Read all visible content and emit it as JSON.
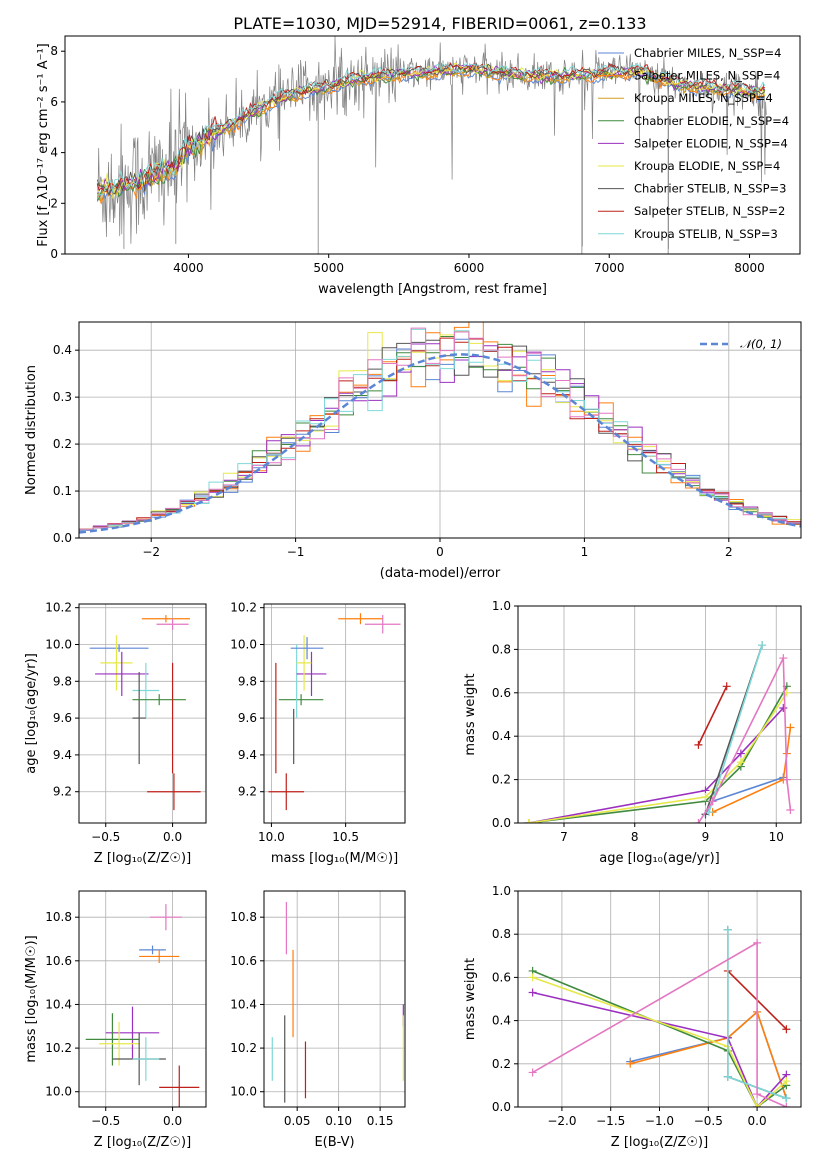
{
  "figure": {
    "title": "PLATE=1030, MJD=52914, FIBERID=0061, z=0.133"
  },
  "colors": {
    "chabrier_miles": "#5b86d6",
    "salpeter_miles": "#ff7f0e",
    "kroupa_miles": "#d4a020",
    "chabrier_elodie": "#3f8a3f",
    "salpeter_elodie": "#9b30c0",
    "kroupa_elodie": "#e6e84a",
    "chabrier_stelib": "#555555",
    "salpeter_stelib": "#c0201a",
    "kroupa_stelib": "#7fd8d8",
    "pink": "#e377c2",
    "data": "#808080",
    "normal": "#5b86d6"
  },
  "chart_data": [
    {
      "id": "spectrum",
      "type": "line",
      "title": "PLATE=1030, MJD=52914, FIBERID=0061, z=0.133",
      "xlabel": "wavelength [Angstrom, rest frame]",
      "ylabel": "Flux [f_λ10⁻¹⁷ erg cm⁻² s⁻¹ A⁻¹]",
      "xlim": [
        3120,
        8360
      ],
      "ylim": [
        0,
        8.6
      ],
      "xticks": [
        4000,
        5000,
        6000,
        7000,
        8000
      ],
      "yticks": [
        0,
        2,
        4,
        6,
        8
      ],
      "legend_position": "right",
      "series": [
        {
          "key": "chabrier_miles",
          "label": "Chabrier MILES, N_SSP=4"
        },
        {
          "key": "salpeter_miles",
          "label": "Salpeter MILES, N_SSP=4"
        },
        {
          "key": "kroupa_miles",
          "label": "Kroupa MILES, N_SSP=4"
        },
        {
          "key": "chabrier_elodie",
          "label": "Chabrier ELODIE, N_SSP=4"
        },
        {
          "key": "salpeter_elodie",
          "label": "Salpeter ELODIE, N_SSP=4"
        },
        {
          "key": "kroupa_elodie",
          "label": "Kroupa ELODIE, N_SSP=4"
        },
        {
          "key": "chabrier_stelib",
          "label": "Chabrier STELIB, N_SSP=3"
        },
        {
          "key": "salpeter_stelib",
          "label": "Salpeter STELIB, N_SSP=2"
        },
        {
          "key": "kroupa_stelib",
          "label": "Kroupa STELIB, N_SSP=3"
        }
      ],
      "continuum_x": [
        3350,
        3600,
        3900,
        4000,
        4200,
        4400,
        4600,
        4800,
        5000,
        5200,
        5500,
        5800,
        6000,
        6300,
        6600,
        6900,
        7200,
        7500,
        7800,
        8100
      ],
      "continuum_y": [
        2.5,
        2.8,
        3.4,
        4.2,
        4.8,
        5.4,
        6.0,
        6.4,
        6.6,
        6.9,
        7.1,
        7.2,
        7.3,
        7.1,
        7.0,
        7.1,
        7.2,
        6.7,
        6.5,
        6.4
      ]
    },
    {
      "id": "residuals",
      "type": "histogram",
      "xlabel": "(data-model)/error",
      "ylabel": "Normed distribution",
      "xlim": [
        -2.5,
        2.5
      ],
      "ylim": [
        0,
        0.46
      ],
      "xticks": [
        -2,
        -1,
        0,
        1,
        2
      ],
      "yticks": [
        0.0,
        0.1,
        0.2,
        0.3,
        0.4
      ],
      "legend_label": "𝒩(0, 1)",
      "legend_position": "top-right",
      "bin_width": 0.1,
      "series_keys": [
        "chabrier_miles",
        "salpeter_miles",
        "chabrier_elodie",
        "salpeter_elodie",
        "kroupa_elodie",
        "chabrier_stelib",
        "salpeter_stelib",
        "kroupa_stelib",
        "pink"
      ]
    },
    {
      "id": "age_vs_Z",
      "type": "errorbar",
      "xlabel": "Z [log₁₀(Z/Z☉)]",
      "ylabel": "age  [log₁₀(age/yr)]",
      "xlim": [
        -0.7,
        0.25
      ],
      "ylim": [
        9.03,
        10.22
      ],
      "xticks": [
        -0.5,
        0.0
      ],
      "xtick_labels": [
        "−0.5",
        "0.0"
      ],
      "yticks": [
        9.2,
        9.4,
        9.6,
        9.8,
        10.0,
        10.2
      ],
      "points": [
        {
          "c": "chabrier_miles",
          "x": -0.4,
          "xe": 0.22,
          "y": 9.98,
          "ye": 0.02
        },
        {
          "c": "kroupa_elodie",
          "x": -0.42,
          "xe": 0.12,
          "y": 9.9,
          "ye": 0.15
        },
        {
          "c": "salpeter_elodie",
          "x": -0.38,
          "xe": 0.2,
          "y": 9.84,
          "ye": 0.12
        },
        {
          "c": "kroupa_stelib",
          "x": -0.2,
          "xe": 0.1,
          "y": 9.75,
          "ye": 0.15
        },
        {
          "c": "chabrier_stelib",
          "x": -0.25,
          "xe": 0.05,
          "y": 9.6,
          "ye": 0.25
        },
        {
          "c": "chabrier_elodie",
          "x": -0.1,
          "xe": 0.2,
          "y": 9.7,
          "ye": 0.03
        },
        {
          "c": "salpeter_miles",
          "x": -0.05,
          "xe": 0.18,
          "y": 10.14,
          "ye": 0.02
        },
        {
          "c": "pink",
          "x": 0.0,
          "xe": 0.12,
          "y": 10.11,
          "ye": 0.03
        },
        {
          "c": "salpeter_stelib",
          "x": 0.01,
          "xe": 0.2,
          "y": 9.2,
          "ye": 0.1
        },
        {
          "c": "salpeter_stelib",
          "x": 0.0,
          "xe": 0.0,
          "y": 9.6,
          "ye": 0.3
        }
      ]
    },
    {
      "id": "age_vs_mass",
      "type": "errorbar",
      "xlabel": "mass [log₁₀(M/M☉)]",
      "ylabel": "",
      "xlim": [
        9.95,
        10.9
      ],
      "ylim": [
        9.03,
        10.22
      ],
      "xticks": [
        10.0,
        10.5
      ],
      "xtick_labels": [
        "10.0",
        "10.5"
      ],
      "yticks": [
        9.2,
        9.4,
        9.6,
        9.8,
        10.0,
        10.2
      ],
      "points": [
        {
          "c": "salpeter_stelib",
          "x": 10.1,
          "xe": 0.12,
          "y": 9.2,
          "ye": 0.1
        },
        {
          "c": "salpeter_stelib",
          "x": 10.03,
          "xe": 0.0,
          "y": 9.6,
          "ye": 0.3
        },
        {
          "c": "chabrier_elodie",
          "x": 10.2,
          "xe": 0.15,
          "y": 9.7,
          "ye": 0.03
        },
        {
          "c": "chabrier_stelib",
          "x": 10.15,
          "xe": 0.0,
          "y": 9.5,
          "ye": 0.15
        },
        {
          "c": "kroupa_stelib",
          "x": 10.17,
          "xe": 0.0,
          "y": 9.8,
          "ye": 0.2
        },
        {
          "c": "salpeter_elodie",
          "x": 10.27,
          "xe": 0.1,
          "y": 9.84,
          "ye": 0.12
        },
        {
          "c": "kroupa_elodie",
          "x": 10.22,
          "xe": 0.05,
          "y": 9.9,
          "ye": 0.15
        },
        {
          "c": "chabrier_miles",
          "x": 10.24,
          "xe": 0.11,
          "y": 9.98,
          "ye": 0.06
        },
        {
          "c": "salpeter_miles",
          "x": 10.6,
          "xe": 0.15,
          "y": 10.14,
          "ye": 0.03
        },
        {
          "c": "pink",
          "x": 10.75,
          "xe": 0.12,
          "y": 10.11,
          "ye": 0.05
        }
      ]
    },
    {
      "id": "massweight_vs_age",
      "type": "line",
      "xlabel": "age  [log₁₀(age/yr)]",
      "ylabel": "mass weight",
      "xlim": [
        6.35,
        10.35
      ],
      "ylim": [
        0,
        1.0
      ],
      "xticks": [
        7,
        8,
        9,
        10
      ],
      "yticks": [
        0.0,
        0.2,
        0.4,
        0.6,
        0.8,
        1.0
      ],
      "series": [
        {
          "c": "chabrier_miles",
          "x": [
            9.0,
            9.1,
            10.1
          ],
          "y": [
            0.04,
            0.1,
            0.21
          ]
        },
        {
          "c": "salpeter_miles",
          "x": [
            9.1,
            10.1,
            10.15,
            10.2
          ],
          "y": [
            0.05,
            0.2,
            0.32,
            0.44
          ]
        },
        {
          "c": "chabrier_elodie",
          "x": [
            6.5,
            9.0,
            9.5,
            10.15
          ],
          "y": [
            0.0,
            0.1,
            0.26,
            0.63
          ]
        },
        {
          "c": "salpeter_elodie",
          "x": [
            6.5,
            9.0,
            9.5,
            10.1
          ],
          "y": [
            0.0,
            0.15,
            0.32,
            0.53
          ]
        },
        {
          "c": "kroupa_elodie",
          "x": [
            6.5,
            9.0,
            9.5,
            10.15
          ],
          "y": [
            0.0,
            0.12,
            0.28,
            0.6
          ]
        },
        {
          "c": "chabrier_stelib",
          "x": [
            9.0,
            9.8
          ],
          "y": [
            0.04,
            0.82
          ]
        },
        {
          "c": "salpeter_stelib",
          "x": [
            8.9,
            9.3
          ],
          "y": [
            0.36,
            0.63
          ]
        },
        {
          "c": "kroupa_stelib",
          "x": [
            9.05,
            9.8
          ],
          "y": [
            0.05,
            0.82
          ]
        },
        {
          "c": "pink",
          "x": [
            8.9,
            9.1,
            10.1,
            10.15,
            10.2
          ],
          "y": [
            0.0,
            0.1,
            0.76,
            0.2,
            0.06
          ]
        }
      ]
    },
    {
      "id": "mass_vs_Z",
      "type": "errorbar",
      "xlabel": "Z [log₁₀(Z/Z☉)]",
      "ylabel": "mass [log₁₀(M/M☉)]",
      "xlim": [
        -0.7,
        0.25
      ],
      "ylim": [
        9.93,
        10.92
      ],
      "xticks": [
        -0.5,
        0.0
      ],
      "xtick_labels": [
        "−0.5",
        "0.0"
      ],
      "yticks": [
        10.0,
        10.2,
        10.4,
        10.6,
        10.8
      ],
      "points": [
        {
          "c": "pink",
          "x": -0.05,
          "xe": 0.12,
          "y": 10.8,
          "ye": 0.06
        },
        {
          "c": "chabrier_miles",
          "x": -0.15,
          "xe": 0.1,
          "y": 10.65,
          "ye": 0.02
        },
        {
          "c": "salpeter_miles",
          "x": -0.1,
          "xe": 0.15,
          "y": 10.62,
          "ye": 0.03
        },
        {
          "c": "salpeter_elodie",
          "x": -0.3,
          "xe": 0.2,
          "y": 10.27,
          "ye": 0.12
        },
        {
          "c": "chabrier_elodie",
          "x": -0.45,
          "xe": 0.2,
          "y": 10.24,
          "ye": 0.12
        },
        {
          "c": "kroupa_elodie",
          "x": -0.4,
          "xe": 0.15,
          "y": 10.22,
          "ye": 0.1
        },
        {
          "c": "chabrier_stelib",
          "x": -0.25,
          "xe": 0.2,
          "y": 10.15,
          "ye": 0.12
        },
        {
          "c": "kroupa_stelib",
          "x": -0.2,
          "xe": 0.1,
          "y": 10.15,
          "ye": 0.1
        },
        {
          "c": "salpeter_stelib",
          "x": 0.05,
          "xe": 0.15,
          "y": 10.02,
          "ye": 0.1
        }
      ]
    },
    {
      "id": "mass_vs_ebv",
      "type": "errorbar",
      "xlabel": "E(B-V)",
      "ylabel": "",
      "xlim": [
        0.01,
        0.18
      ],
      "ylim": [
        9.93,
        10.92
      ],
      "xticks": [
        0.05,
        0.1,
        0.15
      ],
      "xtick_labels": [
        "0.05",
        "0.10",
        "0.15"
      ],
      "yticks": [
        10.0,
        10.2,
        10.4,
        10.6,
        10.8
      ],
      "points": [
        {
          "c": "kroupa_stelib",
          "x": 0.02,
          "xe": 0.0,
          "y": 10.15,
          "ye": 0.1
        },
        {
          "c": "chabrier_stelib",
          "x": 0.035,
          "xe": 0.0,
          "y": 10.15,
          "ye": 0.2
        },
        {
          "c": "pink",
          "x": 0.037,
          "xe": 0.0,
          "y": 10.75,
          "ye": 0.12
        },
        {
          "c": "salpeter_miles",
          "x": 0.045,
          "xe": 0.0,
          "y": 10.45,
          "ye": 0.2
        },
        {
          "c": "salpeter_stelib",
          "x": 0.06,
          "xe": 0.0,
          "y": 10.1,
          "ye": 0.13
        },
        {
          "c": "salpeter_elodie",
          "x": 0.178,
          "xe": 0.0,
          "y": 10.35,
          "ye": 0.05
        },
        {
          "c": "kroupa_elodie",
          "x": 0.178,
          "xe": 0.0,
          "y": 10.2,
          "ye": 0.15
        }
      ]
    },
    {
      "id": "massweight_vs_Z",
      "type": "line",
      "xlabel": "Z [log₁₀(Z/Z☉)]",
      "ylabel": "mass weight",
      "xlim": [
        -2.45,
        0.45
      ],
      "ylim": [
        0,
        1.0
      ],
      "xticks": [
        -2.0,
        -1.5,
        -1.0,
        -0.5,
        0.0
      ],
      "xtick_labels": [
        "−2.0",
        "−1.5",
        "−1.0",
        "−0.5",
        "0.0"
      ],
      "yticks": [
        0.0,
        0.2,
        0.4,
        0.6,
        0.8,
        1.0
      ],
      "series": [
        {
          "c": "chabrier_miles",
          "x": [
            -1.3,
            -0.3,
            0.0,
            0.3
          ],
          "y": [
            0.21,
            0.32,
            0.44,
            0.04
          ]
        },
        {
          "c": "salpeter_miles",
          "x": [
            -1.3,
            -0.3,
            0.0,
            0.3
          ],
          "y": [
            0.2,
            0.32,
            0.44,
            0.04
          ]
        },
        {
          "c": "chabrier_elodie",
          "x": [
            -2.3,
            -0.3,
            0.0,
            0.3
          ],
          "y": [
            0.63,
            0.26,
            0.0,
            0.1
          ]
        },
        {
          "c": "salpeter_elodie",
          "x": [
            -2.3,
            -0.3,
            0.0,
            0.3
          ],
          "y": [
            0.53,
            0.32,
            0.0,
            0.15
          ]
        },
        {
          "c": "kroupa_elodie",
          "x": [
            -2.3,
            -0.3,
            0.0,
            0.3
          ],
          "y": [
            0.6,
            0.28,
            0.0,
            0.12
          ]
        },
        {
          "c": "chabrier_stelib",
          "x": [
            -0.3,
            -0.3,
            0.3
          ],
          "y": [
            0.82,
            0.14,
            0.04
          ]
        },
        {
          "c": "salpeter_stelib",
          "x": [
            -0.3,
            0.3
          ],
          "y": [
            0.63,
            0.36
          ]
        },
        {
          "c": "kroupa_stelib",
          "x": [
            -0.3,
            -0.3,
            0.3
          ],
          "y": [
            0.82,
            0.14,
            0.04
          ]
        },
        {
          "c": "pink",
          "x": [
            -2.3,
            0.0,
            0.0,
            0.3
          ],
          "y": [
            0.16,
            0.76,
            0.06,
            0.0
          ]
        }
      ]
    }
  ]
}
